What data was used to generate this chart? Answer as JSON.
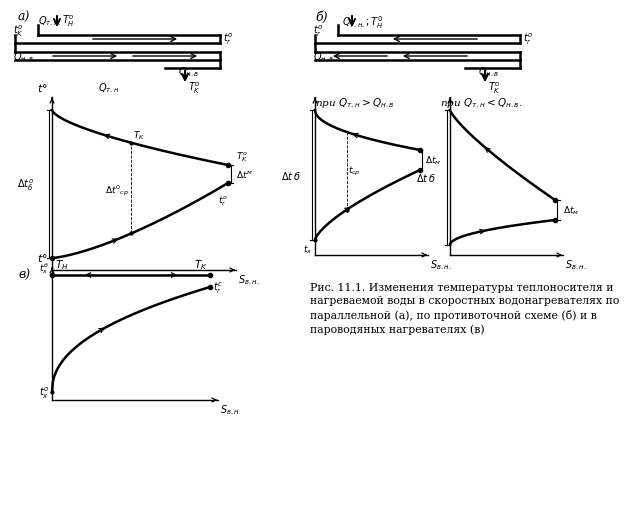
{
  "bg_color": "#ffffff",
  "fig_width": 5.88,
  "fig_height": 4.91,
  "caption": "Рис. 11.1. Изменения температуры теплоносителя и\nнагреваемой воды в скоростных водонагревателях по\nпараллельной (а), по противоточной схеме (б) и в\nпароводяных нагревателях (в)"
}
